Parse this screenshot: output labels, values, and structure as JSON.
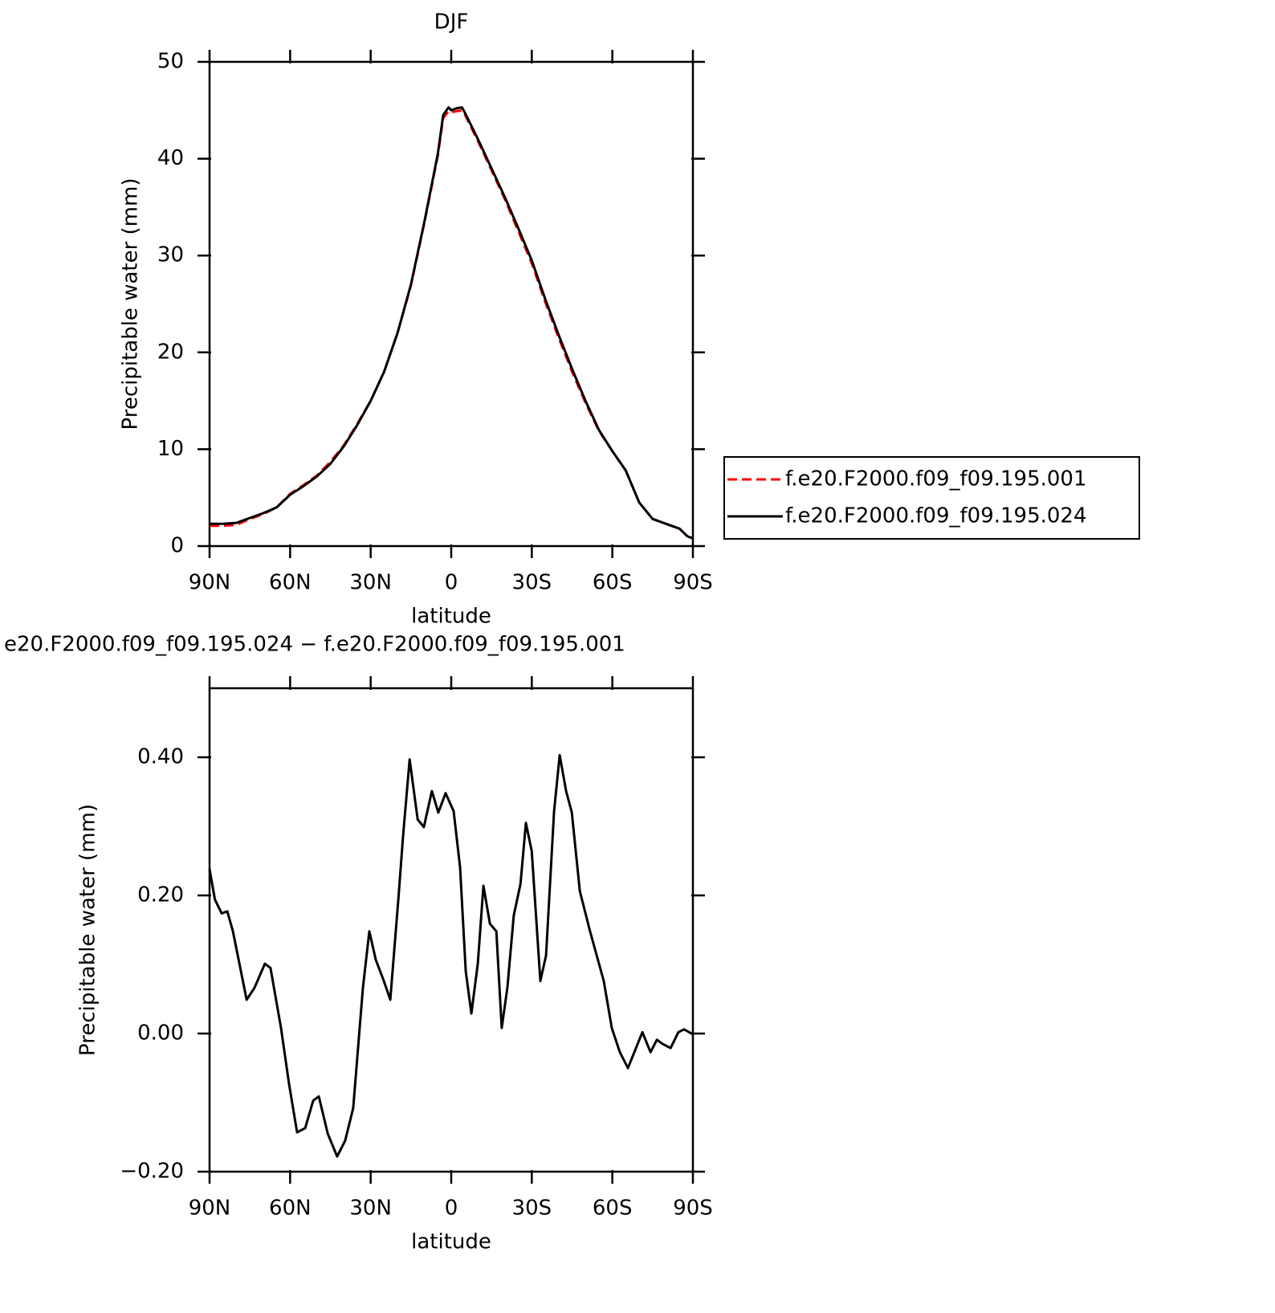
{
  "chart_data": [
    {
      "type": "line",
      "title": "DJF",
      "x_label": "latitude",
      "y_label": "Precipitable water (mm)",
      "x": [
        90,
        85,
        80,
        75,
        70,
        65,
        60,
        55,
        50,
        45,
        40,
        35,
        30,
        25,
        20,
        15,
        10,
        5,
        3,
        1,
        0,
        -2,
        -4,
        -5,
        -10,
        -15,
        -20,
        -25,
        -30,
        -35,
        -40,
        -45,
        -50,
        -55,
        -60,
        -65,
        -70,
        -75,
        -80,
        -85,
        -88,
        -90
      ],
      "series": [
        {
          "name": "f.e20.F2000.f09_f09.195.001",
          "color": "#ff0000",
          "dashed": true,
          "values": [
            2.1,
            2.1,
            2.2,
            2.8,
            3.3,
            4.0,
            5.4,
            6.3,
            7.3,
            8.7,
            10.4,
            12.6,
            15.0,
            18.0,
            22.0,
            26.9,
            33.4,
            40.3,
            44.2,
            44.9,
            44.8,
            44.9,
            45.0,
            44.6,
            41.8,
            38.8,
            35.8,
            32.5,
            29.2,
            25.2,
            21.5,
            18.0,
            14.8,
            11.9,
            9.8,
            7.8,
            4.5,
            2.8,
            2.3,
            1.8,
            1.0,
            0.8
          ]
        },
        {
          "name": "f.e20.F2000.f09_f09.195.024",
          "color": "#000000",
          "dashed": false,
          "values": [
            2.3,
            2.3,
            2.4,
            2.9,
            3.4,
            4.0,
            5.3,
            6.2,
            7.2,
            8.5,
            10.3,
            12.5,
            15.0,
            18.0,
            22.0,
            27.0,
            33.5,
            40.5,
            44.5,
            45.3,
            45.0,
            45.2,
            45.3,
            44.8,
            42.0,
            39.0,
            36.0,
            32.8,
            29.5,
            25.5,
            21.8,
            18.3,
            15.0,
            12.0,
            9.8,
            7.8,
            4.5,
            2.8,
            2.3,
            1.8,
            1.0,
            0.8
          ]
        }
      ],
      "xlim": [
        90,
        -90
      ],
      "xticks": [
        {
          "value": 90,
          "label": "90N"
        },
        {
          "value": 60,
          "label": "60N"
        },
        {
          "value": 30,
          "label": "30N"
        },
        0,
        {
          "value": -30,
          "label": "30S"
        },
        {
          "value": -60,
          "label": "60S"
        },
        {
          "value": -90,
          "label": "90S"
        }
      ],
      "ylim": [
        0,
        50
      ],
      "yticks": [
        0,
        10,
        20,
        30,
        40,
        50
      ],
      "legend": "right"
    },
    {
      "type": "line",
      "title": "e20.F2000.f09_f09.195.024 − f.e20.F2000.f09_f09.195.001",
      "x_label": "latitude",
      "y_label": "Precipitable water (mm)",
      "x": [
        90,
        88,
        85.5,
        83.4,
        81.3,
        78.3,
        76.2,
        73.3,
        69.4,
        67.3,
        63.4,
        60.4,
        57.4,
        54.4,
        51.4,
        49.3,
        46,
        42.5,
        39.5,
        36.5,
        32.9,
        30.5,
        28.1,
        25.1,
        22.7,
        19.7,
        17.9,
        15.5,
        12.5,
        10.2,
        7.2,
        4.8,
        2.1,
        -0.9,
        -3.3,
        -5.4,
        -7.5,
        -9.9,
        -12,
        -14.4,
        -16.8,
        -18.8,
        -20.9,
        -23.3,
        -25.8,
        -27.8,
        -30,
        -33.2,
        -35.3,
        -38.3,
        -40.4,
        -42.8,
        -44.9,
        -47.9,
        -51.7,
        -56.8,
        -59.8,
        -62.8,
        -65.8,
        -68.8,
        -71.2,
        -74.2,
        -76.6,
        -78.7,
        -81.7,
        -84.6,
        -86.7,
        -90
      ],
      "color": "#000000",
      "values": [
        0.238,
        0.194,
        0.174,
        0.177,
        0.148,
        0.09,
        0.049,
        0.066,
        0.101,
        0.095,
        0.008,
        -0.073,
        -0.143,
        -0.137,
        -0.097,
        -0.091,
        -0.145,
        -0.178,
        -0.155,
        -0.108,
        0.066,
        0.148,
        0.107,
        0.076,
        0.049,
        0.194,
        0.287,
        0.397,
        0.31,
        0.299,
        0.351,
        0.32,
        0.348,
        0.322,
        0.241,
        0.09,
        0.029,
        0.101,
        0.214,
        0.159,
        0.148,
        0.008,
        0.066,
        0.171,
        0.217,
        0.305,
        0.264,
        0.076,
        0.113,
        0.322,
        0.403,
        0.351,
        0.32,
        0.206,
        0.148,
        0.076,
        0.008,
        -0.027,
        -0.05,
        -0.021,
        0.002,
        -0.027,
        -0.009,
        -0.015,
        -0.021,
        0.002,
        0.006,
        -0.001
      ],
      "xlim": [
        90,
        -90
      ],
      "xticks": [
        {
          "value": 90,
          "label": "90N"
        },
        {
          "value": 60,
          "label": "60N"
        },
        {
          "value": 30,
          "label": "30N"
        },
        0,
        {
          "value": -30,
          "label": "30S"
        },
        {
          "value": -60,
          "label": "60S"
        },
        {
          "value": -90,
          "label": "90S"
        }
      ],
      "ylim": [
        -0.2,
        0.5
      ],
      "yticks": [
        {
          "value": -0.2,
          "label": "−0.20"
        },
        {
          "value": 0,
          "label": "0.00"
        },
        {
          "value": 0.2,
          "label": "0.20"
        },
        {
          "value": 0.4,
          "label": "0.40"
        }
      ]
    }
  ]
}
